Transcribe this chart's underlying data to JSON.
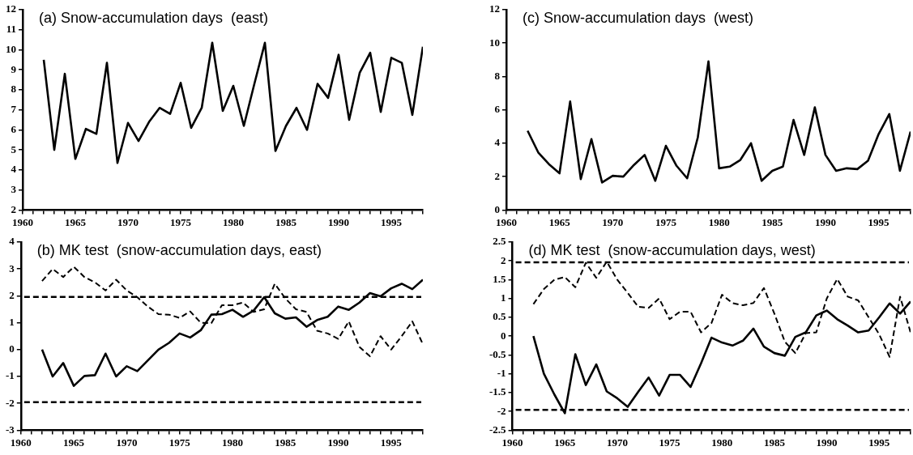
{
  "chart_data": [
    {
      "type": "line",
      "title": "(a) Snow-accumulation days  (east)",
      "x": [
        1962,
        1963,
        1964,
        1965,
        1966,
        1967,
        1968,
        1969,
        1970,
        1971,
        1972,
        1973,
        1974,
        1975,
        1976,
        1977,
        1978,
        1979,
        1980,
        1981,
        1982,
        1983,
        1984,
        1985,
        1986,
        1987,
        1988,
        1989,
        1990,
        1991,
        1992,
        1993,
        1994,
        1995,
        1996,
        1997,
        1998
      ],
      "series": [
        {
          "color": "#000000",
          "line_style": "solid",
          "values": [
            9.5,
            5.0,
            8.8,
            4.55,
            6.05,
            5.8,
            9.35,
            4.35,
            6.35,
            5.45,
            6.4,
            7.1,
            6.8,
            8.35,
            6.1,
            7.1,
            10.35,
            6.95,
            8.2,
            6.2,
            8.3,
            10.35,
            4.95,
            6.2,
            7.1,
            6.0,
            8.3,
            7.6,
            9.75,
            6.5,
            8.85,
            9.85,
            6.9,
            9.6,
            9.35,
            6.75,
            10.15
          ]
        }
      ],
      "xlim": [
        1960,
        1998
      ],
      "xticks": [
        1960,
        {
          "value": 1961,
          "label": null
        },
        {
          "value": 1962,
          "label": null
        },
        {
          "value": 1963,
          "label": null
        },
        {
          "value": 1964,
          "label": null
        },
        1965,
        {
          "value": 1966,
          "label": null
        },
        {
          "value": 1967,
          "label": null
        },
        {
          "value": 1968,
          "label": null
        },
        {
          "value": 1969,
          "label": null
        },
        1970,
        {
          "value": 1971,
          "label": null
        },
        {
          "value": 1972,
          "label": null
        },
        {
          "value": 1973,
          "label": null
        },
        {
          "value": 1974,
          "label": null
        },
        1975,
        {
          "value": 1976,
          "label": null
        },
        {
          "value": 1977,
          "label": null
        },
        {
          "value": 1978,
          "label": null
        },
        {
          "value": 1979,
          "label": null
        },
        1980,
        {
          "value": 1981,
          "label": null
        },
        {
          "value": 1982,
          "label": null
        },
        {
          "value": 1983,
          "label": null
        },
        {
          "value": 1984,
          "label": null
        },
        1985,
        {
          "value": 1986,
          "label": null
        },
        {
          "value": 1987,
          "label": null
        },
        {
          "value": 1988,
          "label": null
        },
        {
          "value": 1989,
          "label": null
        },
        1990,
        {
          "value": 1991,
          "label": null
        },
        {
          "value": 1992,
          "label": null
        },
        {
          "value": 1993,
          "label": null
        },
        {
          "value": 1994,
          "label": null
        },
        1995,
        {
          "value": 1996,
          "label": null
        },
        {
          "value": 1997,
          "label": null
        },
        {
          "value": 1998,
          "label": null
        }
      ],
      "ylim": [
        2,
        12
      ],
      "yticks": [
        2,
        3,
        4,
        5,
        6,
        7,
        8,
        9,
        10,
        11,
        12
      ],
      "grid": false,
      "legend": false,
      "marker": "none"
    },
    {
      "type": "line",
      "title": "(b) MK test  (snow-accumulation days, east)",
      "x": [
        1962,
        1963,
        1964,
        1965,
        1966,
        1967,
        1968,
        1969,
        1970,
        1971,
        1972,
        1973,
        1974,
        1975,
        1976,
        1977,
        1978,
        1979,
        1980,
        1981,
        1982,
        1983,
        1984,
        1985,
        1986,
        1987,
        1988,
        1989,
        1990,
        1991,
        1992,
        1993,
        1994,
        1995,
        1996,
        1997,
        1998
      ],
      "series": [
        {
          "color": "#000000",
          "line_style": "solid",
          "values": [
            0,
            -1.0,
            -0.5,
            -1.35,
            -0.98,
            -0.95,
            -0.15,
            -1.0,
            -0.62,
            -0.8,
            -0.4,
            0.0,
            0.25,
            0.6,
            0.45,
            0.72,
            1.3,
            1.32,
            1.48,
            1.22,
            1.45,
            1.95,
            1.35,
            1.15,
            1.2,
            0.85,
            1.1,
            1.22,
            1.6,
            1.48,
            1.75,
            2.1,
            1.98,
            2.28,
            2.45,
            2.25,
            2.6
          ]
        },
        {
          "color": "#000000",
          "line_style": "dashed",
          "values": [
            2.55,
            3.0,
            2.7,
            3.08,
            2.7,
            2.5,
            2.2,
            2.6,
            2.2,
            1.95,
            1.6,
            1.32,
            1.3,
            1.18,
            1.42,
            1.0,
            0.98,
            1.65,
            1.65,
            1.75,
            1.4,
            1.5,
            2.45,
            1.9,
            1.5,
            1.4,
            0.7,
            0.6,
            0.4,
            1.05,
            0.1,
            -0.25,
            0.5,
            0.0,
            0.5,
            1.05,
            0.2
          ]
        }
      ],
      "ref_lines": [
        {
          "axis": "y",
          "value": 1.96,
          "color": "#000000",
          "line_style": "dashed"
        },
        {
          "axis": "y",
          "value": -1.96,
          "color": "#000000",
          "line_style": "dashed"
        }
      ],
      "xlim": [
        1960,
        1998
      ],
      "xticks": [
        1960,
        {
          "value": 1961,
          "label": null
        },
        {
          "value": 1962,
          "label": null
        },
        {
          "value": 1963,
          "label": null
        },
        {
          "value": 1964,
          "label": null
        },
        1965,
        {
          "value": 1966,
          "label": null
        },
        {
          "value": 1967,
          "label": null
        },
        {
          "value": 1968,
          "label": null
        },
        {
          "value": 1969,
          "label": null
        },
        1970,
        {
          "value": 1971,
          "label": null
        },
        {
          "value": 1972,
          "label": null
        },
        {
          "value": 1973,
          "label": null
        },
        {
          "value": 1974,
          "label": null
        },
        1975,
        {
          "value": 1976,
          "label": null
        },
        {
          "value": 1977,
          "label": null
        },
        {
          "value": 1978,
          "label": null
        },
        {
          "value": 1979,
          "label": null
        },
        1980,
        {
          "value": 1981,
          "label": null
        },
        {
          "value": 1982,
          "label": null
        },
        {
          "value": 1983,
          "label": null
        },
        {
          "value": 1984,
          "label": null
        },
        1985,
        {
          "value": 1986,
          "label": null
        },
        {
          "value": 1987,
          "label": null
        },
        {
          "value": 1988,
          "label": null
        },
        {
          "value": 1989,
          "label": null
        },
        1990,
        {
          "value": 1991,
          "label": null
        },
        {
          "value": 1992,
          "label": null
        },
        {
          "value": 1993,
          "label": null
        },
        {
          "value": 1994,
          "label": null
        },
        1995,
        {
          "value": 1996,
          "label": null
        },
        {
          "value": 1997,
          "label": null
        },
        {
          "value": 1998,
          "label": null
        }
      ],
      "ylim": [
        -3,
        4
      ],
      "yticks": [
        -3,
        -2,
        -1,
        0,
        1,
        2,
        3,
        4
      ],
      "grid": false,
      "legend": false,
      "marker": "none"
    },
    {
      "type": "line",
      "title": "(c) Snow-accumulation days  (west)",
      "x": [
        1962,
        1963,
        1964,
        1965,
        1966,
        1967,
        1968,
        1969,
        1970,
        1971,
        1972,
        1973,
        1974,
        1975,
        1976,
        1977,
        1978,
        1979,
        1980,
        1981,
        1982,
        1983,
        1984,
        1985,
        1986,
        1987,
        1988,
        1989,
        1990,
        1991,
        1992,
        1993,
        1994,
        1995,
        1996,
        1997,
        1998
      ],
      "series": [
        {
          "color": "#000000",
          "line_style": "solid",
          "values": [
            4.75,
            3.45,
            2.75,
            2.2,
            6.5,
            1.85,
            4.25,
            1.65,
            2.05,
            2.0,
            2.7,
            3.3,
            1.75,
            3.85,
            2.65,
            1.9,
            4.35,
            8.9,
            2.5,
            2.6,
            3.0,
            4.0,
            1.75,
            2.35,
            2.6,
            5.4,
            3.3,
            6.15,
            3.3,
            2.35,
            2.5,
            2.45,
            2.95,
            4.55,
            5.75,
            2.35,
            4.7
          ]
        }
      ],
      "xlim": [
        1960,
        1998
      ],
      "xticks": [
        1960,
        {
          "value": 1961,
          "label": null
        },
        {
          "value": 1962,
          "label": null
        },
        {
          "value": 1963,
          "label": null
        },
        {
          "value": 1964,
          "label": null
        },
        1965,
        {
          "value": 1966,
          "label": null
        },
        {
          "value": 1967,
          "label": null
        },
        {
          "value": 1968,
          "label": null
        },
        {
          "value": 1969,
          "label": null
        },
        1970,
        {
          "value": 1971,
          "label": null
        },
        {
          "value": 1972,
          "label": null
        },
        {
          "value": 1973,
          "label": null
        },
        {
          "value": 1974,
          "label": null
        },
        1975,
        {
          "value": 1976,
          "label": null
        },
        {
          "value": 1977,
          "label": null
        },
        {
          "value": 1978,
          "label": null
        },
        {
          "value": 1979,
          "label": null
        },
        1980,
        {
          "value": 1981,
          "label": null
        },
        {
          "value": 1982,
          "label": null
        },
        {
          "value": 1983,
          "label": null
        },
        {
          "value": 1984,
          "label": null
        },
        1985,
        {
          "value": 1986,
          "label": null
        },
        {
          "value": 1987,
          "label": null
        },
        {
          "value": 1988,
          "label": null
        },
        {
          "value": 1989,
          "label": null
        },
        1990,
        {
          "value": 1991,
          "label": null
        },
        {
          "value": 1992,
          "label": null
        },
        {
          "value": 1993,
          "label": null
        },
        {
          "value": 1994,
          "label": null
        },
        1995,
        {
          "value": 1996,
          "label": null
        },
        {
          "value": 1997,
          "label": null
        },
        {
          "value": 1998,
          "label": null
        }
      ],
      "ylim": [
        0,
        12
      ],
      "yticks": [
        0,
        2,
        4,
        6,
        8,
        10,
        12
      ],
      "grid": false,
      "legend": false,
      "marker": "none"
    },
    {
      "type": "line",
      "title": "(d) MK test  (snow-accumulation days, west)",
      "x": [
        1962,
        1963,
        1964,
        1965,
        1966,
        1967,
        1968,
        1969,
        1970,
        1971,
        1972,
        1973,
        1974,
        1975,
        1976,
        1977,
        1978,
        1979,
        1980,
        1981,
        1982,
        1983,
        1984,
        1985,
        1986,
        1987,
        1988,
        1989,
        1990,
        1991,
        1992,
        1993,
        1994,
        1995,
        1996,
        1997,
        1998
      ],
      "series": [
        {
          "color": "#000000",
          "line_style": "solid",
          "values": [
            0,
            -1.0,
            -1.55,
            -2.05,
            -0.48,
            -1.3,
            -0.75,
            -1.47,
            -1.65,
            -1.88,
            -1.48,
            -1.1,
            -1.58,
            -1.03,
            -1.03,
            -1.35,
            -0.72,
            -0.04,
            -0.17,
            -0.25,
            -0.12,
            0.2,
            -0.28,
            -0.45,
            -0.52,
            -0.02,
            0.1,
            0.55,
            0.68,
            0.45,
            0.28,
            0.1,
            0.15,
            0.5,
            0.87,
            0.6,
            0.92
          ]
        },
        {
          "color": "#000000",
          "line_style": "dashed",
          "values": [
            0.85,
            1.25,
            1.5,
            1.57,
            1.3,
            1.95,
            1.55,
            1.98,
            1.5,
            1.15,
            0.78,
            0.75,
            1.0,
            0.45,
            0.65,
            0.65,
            0.1,
            0.35,
            1.1,
            0.88,
            0.82,
            0.88,
            1.28,
            0.6,
            -0.15,
            -0.45,
            0.08,
            0.1,
            1.0,
            1.52,
            1.05,
            0.95,
            0.5,
            0.05,
            -0.55,
            1.05,
            0.1
          ]
        }
      ],
      "ref_lines": [
        {
          "axis": "y",
          "value": 1.96,
          "color": "#000000",
          "line_style": "dashed"
        },
        {
          "axis": "y",
          "value": -1.96,
          "color": "#000000",
          "line_style": "dashed"
        }
      ],
      "xlim": [
        1960,
        1998
      ],
      "xticks": [
        1960,
        {
          "value": 1961,
          "label": null
        },
        {
          "value": 1962,
          "label": null
        },
        {
          "value": 1963,
          "label": null
        },
        {
          "value": 1964,
          "label": null
        },
        1965,
        {
          "value": 1966,
          "label": null
        },
        {
          "value": 1967,
          "label": null
        },
        {
          "value": 1968,
          "label": null
        },
        {
          "value": 1969,
          "label": null
        },
        1970,
        {
          "value": 1971,
          "label": null
        },
        {
          "value": 1972,
          "label": null
        },
        {
          "value": 1973,
          "label": null
        },
        {
          "value": 1974,
          "label": null
        },
        1975,
        {
          "value": 1976,
          "label": null
        },
        {
          "value": 1977,
          "label": null
        },
        {
          "value": 1978,
          "label": null
        },
        {
          "value": 1979,
          "label": null
        },
        1980,
        {
          "value": 1981,
          "label": null
        },
        {
          "value": 1982,
          "label": null
        },
        {
          "value": 1983,
          "label": null
        },
        {
          "value": 1984,
          "label": null
        },
        1985,
        {
          "value": 1986,
          "label": null
        },
        {
          "value": 1987,
          "label": null
        },
        {
          "value": 1988,
          "label": null
        },
        {
          "value": 1989,
          "label": null
        },
        1990,
        {
          "value": 1991,
          "label": null
        },
        {
          "value": 1992,
          "label": null
        },
        {
          "value": 1993,
          "label": null
        },
        {
          "value": 1994,
          "label": null
        },
        1995,
        {
          "value": 1996,
          "label": null
        },
        {
          "value": 1997,
          "label": null
        },
        {
          "value": 1998,
          "label": null
        }
      ],
      "ylim": [
        -2.5,
        2.5
      ],
      "yticks": [
        -2.5,
        -2,
        -1.5,
        -1,
        -0.5,
        0,
        0.5,
        1,
        1.5,
        2,
        2.5
      ],
      "grid": false,
      "legend": false,
      "marker": "none"
    }
  ]
}
